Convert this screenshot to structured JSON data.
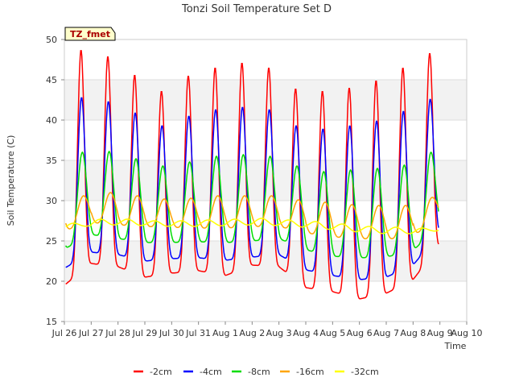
{
  "chart_data": {
    "type": "line",
    "title": "Tonzi Soil Temperature Set D",
    "xlabel": "Time",
    "ylabel": "Soil Temperature (C)",
    "ylim": [
      15,
      50
    ],
    "xlim": [
      0,
      15
    ],
    "yticks": [
      15,
      20,
      25,
      30,
      35,
      40,
      45,
      50
    ],
    "xtick_labels": [
      "Jul 26",
      "Jul 27",
      "Jul 28",
      "Jul 29",
      "Jul 30",
      "Jul 31",
      "Aug 1",
      "Aug 2",
      "Aug 3",
      "Aug 4",
      "Aug 5",
      "Aug 6",
      "Aug 7",
      "Aug 8",
      "Aug 9",
      "Aug 10"
    ],
    "xtick_units": "days since Jul 26",
    "banding": "alternating light gray horizontal bands",
    "grid": true,
    "legend_position": "bottom",
    "annotation_box": "TZ_fmet",
    "series": [
      {
        "name": "-2cm",
        "color": "#ff0000",
        "daily_min": [
          19.5,
          22.2,
          21.8,
          20.5,
          21.0,
          21.3,
          20.7,
          22.0,
          21.8,
          19.2,
          18.7,
          17.8,
          18.5,
          20.2,
          24.5
        ],
        "daily_max": [
          48.7,
          47.9,
          45.6,
          43.6,
          45.5,
          46.5,
          47.1,
          46.5,
          43.9,
          43.6,
          44.0,
          44.9,
          46.5,
          48.3
        ]
      },
      {
        "name": "-4cm",
        "color": "#0000ff",
        "daily_min": [
          21.6,
          23.6,
          23.3,
          22.5,
          22.8,
          22.9,
          22.6,
          23.0,
          23.3,
          21.4,
          20.7,
          20.2,
          20.5,
          22.0,
          26.0
        ],
        "daily_max": [
          42.8,
          42.3,
          40.9,
          39.3,
          40.5,
          41.3,
          41.6,
          41.3,
          39.3,
          38.9,
          39.3,
          39.9,
          41.1,
          42.6
        ]
      },
      {
        "name": "-8cm",
        "color": "#00dd00",
        "daily_min": [
          24.0,
          25.8,
          25.3,
          24.8,
          24.8,
          24.9,
          24.8,
          25.0,
          25.3,
          23.9,
          23.1,
          22.9,
          23.0,
          23.8,
          27.0
        ],
        "daily_max": [
          36.0,
          36.1,
          35.2,
          34.3,
          34.8,
          35.5,
          35.7,
          35.5,
          34.3,
          33.6,
          33.8,
          34.0,
          34.4,
          36.0
        ]
      },
      {
        "name": "-16cm",
        "color": "#ffa500",
        "daily_min": [
          26.3,
          27.3,
          27.0,
          26.8,
          26.7,
          26.6,
          26.6,
          26.8,
          26.8,
          26.0,
          25.5,
          25.3,
          25.2,
          25.6,
          28.0
        ],
        "daily_max": [
          30.6,
          31.0,
          30.6,
          30.2,
          30.3,
          30.6,
          30.6,
          30.6,
          30.1,
          29.8,
          29.5,
          29.4,
          29.4,
          30.4
        ]
      },
      {
        "name": "-32cm",
        "color": "#ffff00",
        "daily_min": [
          26.5,
          26.9,
          27.0,
          26.9,
          26.8,
          26.8,
          26.9,
          27.0,
          26.9,
          26.7,
          26.4,
          26.1,
          25.9,
          25.9,
          26.3
        ],
        "daily_max": [
          27.2,
          27.7,
          27.7,
          27.5,
          27.5,
          27.6,
          27.7,
          27.8,
          27.6,
          27.4,
          27.1,
          26.8,
          26.7,
          26.6,
          26.9
        ]
      }
    ]
  }
}
